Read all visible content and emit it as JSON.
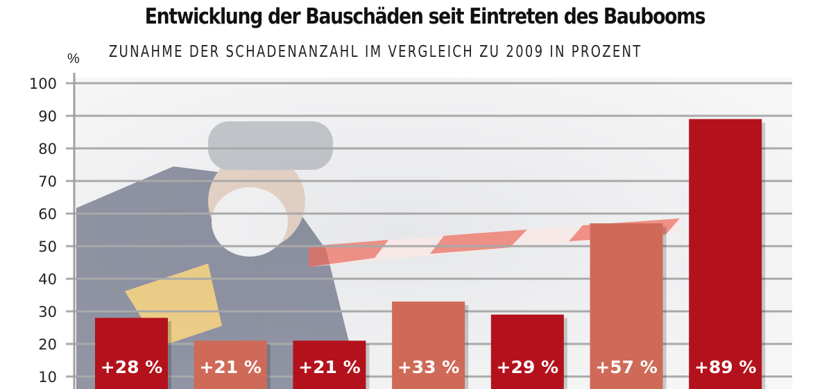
{
  "chart_data": {
    "type": "bar",
    "title": "Entwicklung der Bauschäden seit Eintreten des Baubooms",
    "subtitle": "ZUNAHME DER SCHADENANZAHL IM VERGLEICH ZU 2009 IN PROZENT",
    "ylabel": "%",
    "ylim": [
      0,
      100
    ],
    "yticks": [
      10,
      20,
      30,
      40,
      50,
      60,
      70,
      80,
      90,
      100
    ],
    "grid": true,
    "values": [
      28,
      21,
      21,
      33,
      29,
      57,
      89
    ],
    "data_labels": [
      "+28 %",
      "+21 %",
      "+21 %",
      "+33 %",
      "+29 %",
      "+57 %",
      "+89 %"
    ],
    "bar_colors": [
      "#b3121c",
      "#cf6a58",
      "#b3121c",
      "#cf6a58",
      "#b3121c",
      "#cf6a58",
      "#b3121c"
    ]
  }
}
